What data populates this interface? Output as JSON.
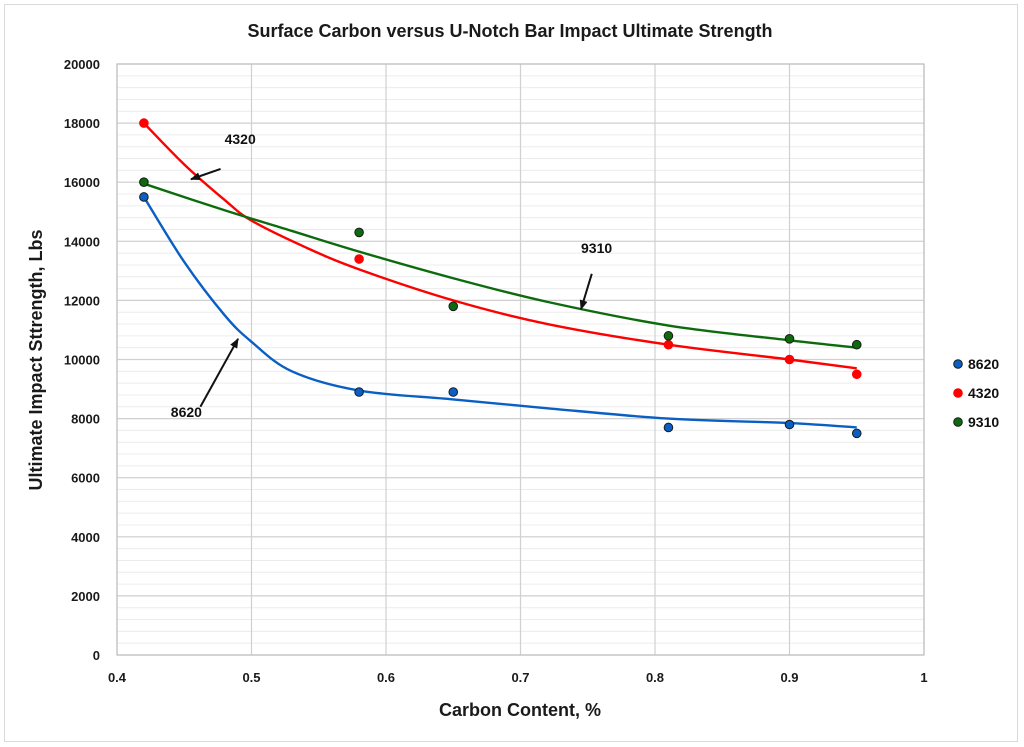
{
  "chart_data": {
    "type": "scatter",
    "title": "Surface Carbon versus U-Notch Bar Impact Ultimate Strength",
    "xlabel": "Carbon Content, %",
    "ylabel": "Ultimate Impact Sttrength, Lbs",
    "xlim": [
      0.4,
      1.0
    ],
    "ylim": [
      0,
      20000
    ],
    "xticks": [
      0.4,
      0.5,
      0.6,
      0.7,
      0.8,
      0.9,
      1.0
    ],
    "xtick_labels": [
      "0.4",
      "0.5",
      "0.6",
      "0.7",
      "0.8",
      "0.9",
      "1"
    ],
    "yticks": [
      0,
      2000,
      4000,
      6000,
      8000,
      10000,
      12000,
      14000,
      16000,
      18000,
      20000
    ],
    "ytick_labels": [
      "0",
      "2000",
      "4000",
      "6000",
      "8000",
      "10000",
      "12000",
      "14000",
      "16000",
      "18000",
      "20000"
    ],
    "grid": true,
    "minor_grid": true,
    "legend_position": "right",
    "series": [
      {
        "name": "8620",
        "color": "#0a5fc4",
        "x": [
          0.42,
          0.58,
          0.65,
          0.81,
          0.9,
          0.95
        ],
        "y": [
          15500,
          8900,
          8900,
          7700,
          7800,
          7500
        ],
        "trend": {
          "x": [
            0.42,
            0.45,
            0.48,
            0.5,
            0.53,
            0.58,
            0.65,
            0.72,
            0.81,
            0.9,
            0.95
          ],
          "y": [
            15500,
            13300,
            11500,
            10600,
            9600,
            8950,
            8650,
            8350,
            8000,
            7850,
            7700
          ]
        }
      },
      {
        "name": "4320",
        "color": "#ff0000",
        "x": [
          0.42,
          0.58,
          0.81,
          0.9,
          0.95
        ],
        "y": [
          18000,
          13400,
          10500,
          10000,
          9500
        ],
        "trend": {
          "x": [
            0.42,
            0.45,
            0.48,
            0.5,
            0.54,
            0.58,
            0.65,
            0.72,
            0.81,
            0.9,
            0.95
          ],
          "y": [
            18000,
            16600,
            15400,
            14700,
            13800,
            13050,
            12000,
            11200,
            10500,
            10000,
            9700
          ]
        }
      },
      {
        "name": "9310",
        "color": "#0d6b0d",
        "x": [
          0.42,
          0.58,
          0.65,
          0.81,
          0.9,
          0.95
        ],
        "y": [
          16000,
          14300,
          11800,
          10800,
          10700,
          10500
        ],
        "trend": {
          "x": [
            0.42,
            0.48,
            0.53,
            0.58,
            0.65,
            0.72,
            0.81,
            0.9,
            0.95
          ],
          "y": [
            15950,
            15050,
            14350,
            13650,
            12750,
            11950,
            11150,
            10650,
            10400
          ]
        }
      }
    ],
    "annotations": [
      {
        "text": "4320",
        "series": "4320",
        "label_x": 0.48,
        "label_y": 17300,
        "arrow_from": [
          0.477,
          16450
        ],
        "arrow_to": [
          0.455,
          16100
        ]
      },
      {
        "text": "9310",
        "series": "9310",
        "label_x": 0.745,
        "label_y": 13600,
        "arrow_from": [
          0.753,
          12900
        ],
        "arrow_to": [
          0.745,
          11700
        ]
      },
      {
        "text": "8620",
        "series": "8620",
        "label_x": 0.44,
        "label_y": 8050,
        "arrow_from": [
          0.462,
          8400
        ],
        "arrow_to": [
          0.49,
          10700
        ]
      }
    ]
  }
}
